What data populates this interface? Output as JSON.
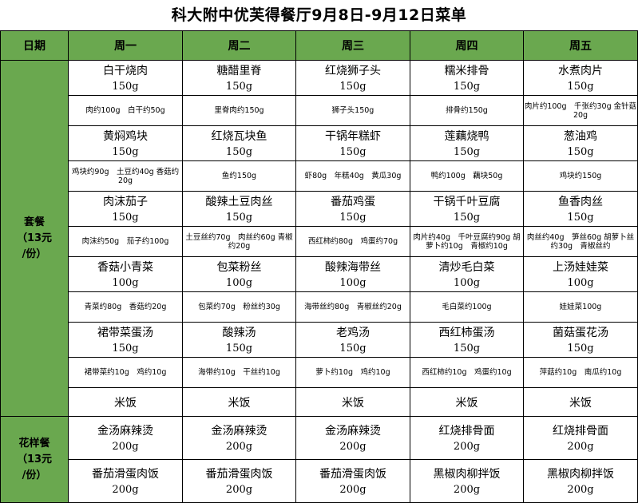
{
  "title": "科大附中优芙得餐厅9月8日-9月12日菜单",
  "header": {
    "date_label": "日期",
    "days": [
      "周一",
      "周二",
      "周三",
      "周四",
      "周五"
    ]
  },
  "set_meal": {
    "label_line1": "套餐",
    "label_line2": "（13元",
    "label_line3": "/份）",
    "rows": [
      {
        "dishes": [
          {
            "name": "白干烧肉",
            "weight": "150g",
            "ing": "肉约100g　白干约50g"
          },
          {
            "name": "糖醋里脊",
            "weight": "150g",
            "ing": "里脊肉约150g"
          },
          {
            "name": "红烧狮子头",
            "weight": "150g",
            "ing": "狮子头150g"
          },
          {
            "name": "糯米排骨",
            "weight": "150g",
            "ing": "排骨约150g"
          },
          {
            "name": "水煮肉片",
            "weight": "150g",
            "ing": "肉片约100g　千张约30g 金针菇20g"
          }
        ]
      },
      {
        "dishes": [
          {
            "name": "黄焖鸡块",
            "weight": "150g",
            "ing": "鸡块约90g　土豆约40g 香菇约20g"
          },
          {
            "name": "红烧瓦块鱼",
            "weight": "150g",
            "ing": "鱼约150g"
          },
          {
            "name": "干锅年糕虾",
            "weight": "150g",
            "ing": "虾80g　年糕40g　黄瓜30g"
          },
          {
            "name": "莲藕烧鸭",
            "weight": "150g",
            "ing": "鸭约100g　藕块50g"
          },
          {
            "name": "葱油鸡",
            "weight": "150g",
            "ing": "鸡块约150g"
          }
        ]
      },
      {
        "dishes": [
          {
            "name": "肉沫茄子",
            "weight": "150g",
            "ing": "肉沫约50g　茄子约100g"
          },
          {
            "name": "酸辣土豆肉丝",
            "weight": "150g",
            "ing": "土豆丝约70g　肉丝约60g 青椒约20g"
          },
          {
            "name": "番茄鸡蛋",
            "weight": "150g",
            "ing": "西红柿约80g　鸡蛋约70g"
          },
          {
            "name": "干锅千叶豆腐",
            "weight": "150g",
            "ing": "肉片约40g　千叶豆腐约90g 胡萝卜约10g　青椒约10g"
          },
          {
            "name": "鱼香肉丝",
            "weight": "150g",
            "ing": "肉丝约40g　笋丝60g 胡萝卜丝约30g　青椒丝约"
          }
        ]
      },
      {
        "dishes": [
          {
            "name": "香菇小青菜",
            "weight": "100g",
            "ing": "青菜约80g　香菇约20g"
          },
          {
            "name": "包菜粉丝",
            "weight": "100g",
            "ing": "包菜约70g　粉丝约30g"
          },
          {
            "name": "酸辣海带丝",
            "weight": "100g",
            "ing": "海带丝约80g　青椒丝约20g"
          },
          {
            "name": "清炒毛白菜",
            "weight": "100g",
            "ing": "毛白菜约100g"
          },
          {
            "name": "上汤娃娃菜",
            "weight": "100g",
            "ing": "娃娃菜100g"
          }
        ]
      },
      {
        "dishes": [
          {
            "name": "裙带菜蛋汤",
            "weight": "150g",
            "ing": "裙带菜约10g　鸡约10g"
          },
          {
            "name": "酸辣汤",
            "weight": "150g",
            "ing": "海带约10g　干丝约10g"
          },
          {
            "name": "老鸡汤",
            "weight": "150g",
            "ing": "萝卜约10g　鸡约10g"
          },
          {
            "name": "西红柿蛋汤",
            "weight": "150g",
            "ing": "西红柿约10g　鸡蛋约10g"
          },
          {
            "name": "菌菇蛋花汤",
            "weight": "150g",
            "ing": "萍菇约10g　南瓜约10g"
          }
        ]
      }
    ],
    "rice": [
      "米饭",
      "米饭",
      "米饭",
      "米饭",
      "米饭"
    ]
  },
  "fancy_meal": {
    "label_line1": "花样餐",
    "label_line2": "（13元",
    "label_line3": "/份）",
    "rows": [
      {
        "dishes": [
          {
            "name": "金汤麻辣烫",
            "weight": "200g"
          },
          {
            "name": "金汤麻辣烫",
            "weight": "200g"
          },
          {
            "name": "金汤麻辣烫",
            "weight": "200g"
          },
          {
            "name": "红烧排骨面",
            "weight": "200g"
          },
          {
            "name": "红烧排骨面",
            "weight": "200g"
          }
        ]
      },
      {
        "dishes": [
          {
            "name": "番茄滑蛋肉饭",
            "weight": "200g"
          },
          {
            "name": "番茄滑蛋肉饭",
            "weight": "200g"
          },
          {
            "name": "番茄滑蛋肉饭",
            "weight": "200g"
          },
          {
            "name": "黑椒肉柳拌饭",
            "weight": "200g"
          },
          {
            "name": "黑椒肉柳拌饭",
            "weight": "200g"
          }
        ]
      }
    ]
  },
  "colors": {
    "header_bg": "#6aa84f",
    "border": "#000000"
  }
}
